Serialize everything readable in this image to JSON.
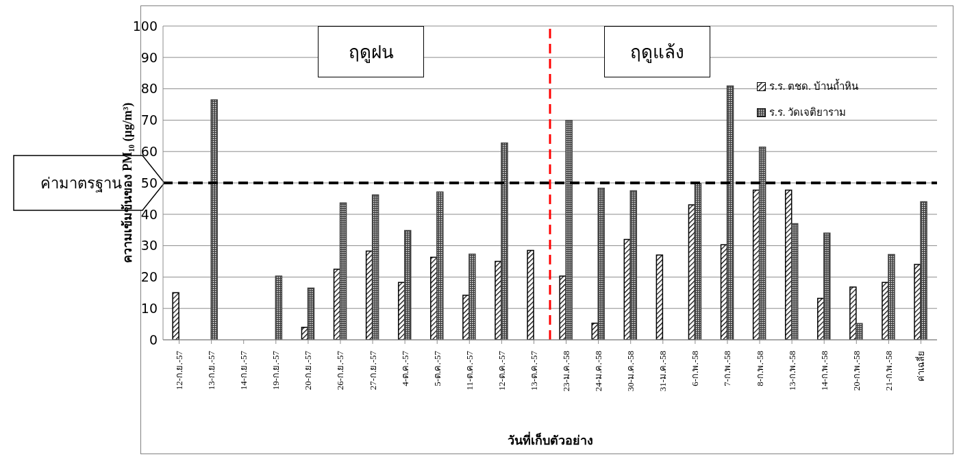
{
  "chart_data": {
    "type": "bar",
    "xlabel": "วันที่เก็บตัวอย่าง",
    "ylabel": "ความเข้มข้นของ PM₁₀ (µg/m³)",
    "categories": [
      "12-ก.ย.-57",
      "13-ก.ย.-57",
      "14-ก.ย.-57",
      "19-ก.ย.-57",
      "20-ก.ย.-57",
      "26-ก.ย.-57",
      "27-ก.ย.-57",
      "4-ต.ค.-57",
      "5-ต.ค.-57",
      "11-ต.ค.-57",
      "12-ต.ค.-57",
      "13-ต.ค.-57",
      "23-ม.ค.-58",
      "24-ม.ค.-58",
      "30-ม.ค.-58",
      "31-ม.ค.-58",
      "6-ก.พ.-58",
      "7-ก.พ.-58",
      "8-ก.พ.-58",
      "13-ก.พ.-58",
      "14-ก.พ.-58",
      "20-ก.พ.-58",
      "21-ก.พ.-58",
      "ค่าเฉลี่ย"
    ],
    "series": [
      {
        "name": "ร.ร. ตชด. บ้านถ้ำหิน",
        "color": "#000000",
        "values": [
          15,
          null,
          null,
          null,
          4,
          22.5,
          28.3,
          18.3,
          26.3,
          14.2,
          25,
          28.5,
          20.3,
          5.3,
          32,
          27,
          43,
          30.3,
          47.7,
          47.7,
          13.2,
          16.8,
          18.3,
          24
        ]
      },
      {
        "name": "ร.ร. วัดเจติยาราม",
        "color": "#404040",
        "values": [
          null,
          76.5,
          null,
          20.3,
          16.5,
          43.6,
          46.2,
          34.8,
          47.1,
          27.3,
          62.7,
          null,
          69.9,
          48.3,
          47.5,
          null,
          49.8,
          80.9,
          61.4,
          37,
          34,
          5.2,
          27.2,
          44
        ]
      }
    ],
    "ylim": [
      0,
      100
    ],
    "yticks": [
      0,
      10,
      20,
      30,
      40,
      50,
      60,
      70,
      80,
      90,
      100
    ],
    "grid": "y",
    "legend": "top right",
    "ref_lines": [
      {
        "axis": "y",
        "value": 50,
        "label": "ค่ามาตรฐาน",
        "color": "#000000",
        "line_style": "dashed"
      },
      {
        "axis": "x",
        "value": "23-ม.ค.-58",
        "color": "#ff0000",
        "line_style": "dashed"
      }
    ],
    "annotations": [
      "ฤดูฝน",
      "ฤดูแล้ง"
    ]
  }
}
